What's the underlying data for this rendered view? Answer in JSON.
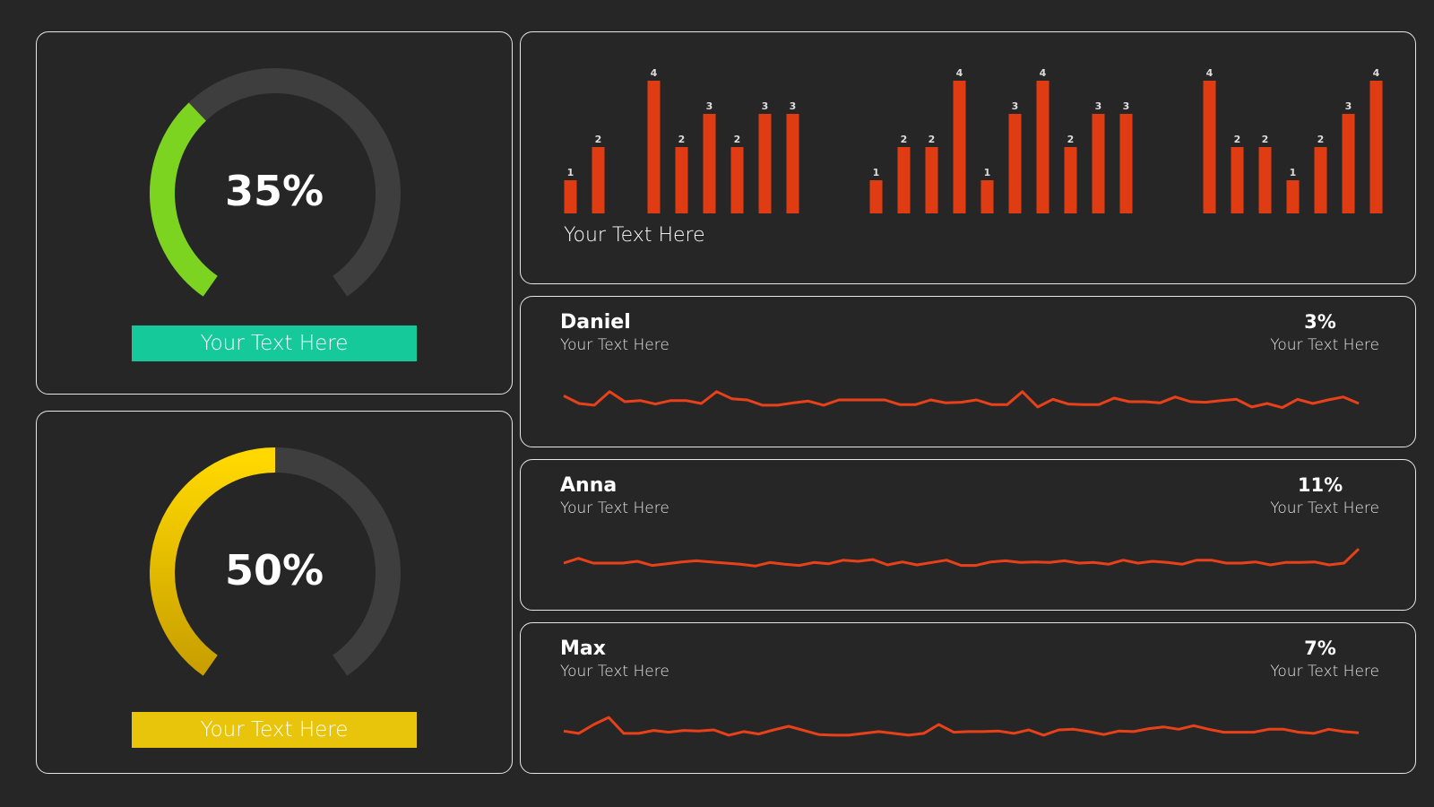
{
  "colors": {
    "background": "#262626",
    "card_border": "#e6e6e6",
    "track": "#3e3e3e",
    "bar": "#e03c14",
    "line": "#e8411a",
    "gauge1": "#7cd320",
    "gauge1_label_bg": "#16c99a",
    "gauge2_top": "#ffd800",
    "gauge2_bottom": "#c9a000",
    "gauge2_label_bg": "#e8c40a"
  },
  "gauges": [
    {
      "percent_text": "35%",
      "value": 0.35,
      "label": "Your Text Here"
    },
    {
      "percent_text": "50%",
      "value": 0.5,
      "label": "Your Text Here"
    }
  ],
  "bar_panel": {
    "caption": "Your Text Here"
  },
  "people": [
    {
      "name": "Daniel",
      "subtitle": "Your Text Here",
      "percent": "3%",
      "percent_subtitle": "Your Text Here"
    },
    {
      "name": "Anna",
      "subtitle": "Your Text Here",
      "percent": "11%",
      "percent_subtitle": "Your Text Here"
    },
    {
      "name": "Max",
      "subtitle": "Your Text Here",
      "percent": "7%",
      "percent_subtitle": "Your Text Here"
    }
  ],
  "chart_data": [
    {
      "type": "bar",
      "values": [
        1,
        2,
        null,
        4,
        2,
        3,
        2,
        3,
        3,
        null,
        null,
        1,
        2,
        2,
        4,
        1,
        3,
        4,
        2,
        3,
        3,
        null,
        null,
        4,
        2,
        2,
        1,
        2,
        3,
        4
      ],
      "ylim": [
        0,
        4
      ],
      "data_labels": true
    },
    {
      "type": "line",
      "series_for": "Daniel",
      "values": [
        57,
        44,
        41,
        64,
        47,
        49,
        43,
        49,
        49,
        44,
        64,
        52,
        50,
        41,
        41,
        45,
        48,
        41,
        50,
        50,
        50,
        50,
        42,
        42,
        50,
        45,
        46,
        50,
        42,
        42,
        64,
        38,
        51,
        43,
        42,
        42,
        53,
        47,
        47,
        45,
        55,
        47,
        46,
        49,
        51,
        38,
        44,
        37,
        51,
        44,
        50,
        55,
        44
      ],
      "ylim": [
        0,
        100
      ]
    },
    {
      "type": "line",
      "series_for": "Anna",
      "values": [
        50,
        58,
        50,
        50,
        50,
        53,
        46,
        49,
        52,
        54,
        52,
        50,
        48,
        45,
        51,
        48,
        46,
        51,
        49,
        55,
        53,
        56,
        47,
        52,
        47,
        51,
        55,
        46,
        46,
        52,
        54,
        51,
        52,
        51,
        54,
        50,
        51,
        48,
        55,
        50,
        53,
        51,
        48,
        55,
        55,
        50,
        50,
        52,
        47,
        51,
        51,
        52,
        47,
        50,
        74
      ],
      "ylim": [
        0,
        100
      ]
    },
    {
      "type": "line",
      "series_for": "Max",
      "values": [
        42,
        38,
        53,
        65,
        38,
        38,
        43,
        40,
        43,
        42,
        44,
        35,
        41,
        37,
        44,
        50,
        43,
        36,
        35,
        35,
        38,
        41,
        38,
        35,
        38,
        53,
        40,
        41,
        41,
        42,
        38,
        44,
        35,
        44,
        45,
        41,
        36,
        42,
        41,
        46,
        49,
        45,
        51,
        45,
        40,
        40,
        40,
        45,
        45,
        40,
        38,
        45,
        41,
        39
      ],
      "ylim": [
        0,
        100
      ]
    }
  ]
}
